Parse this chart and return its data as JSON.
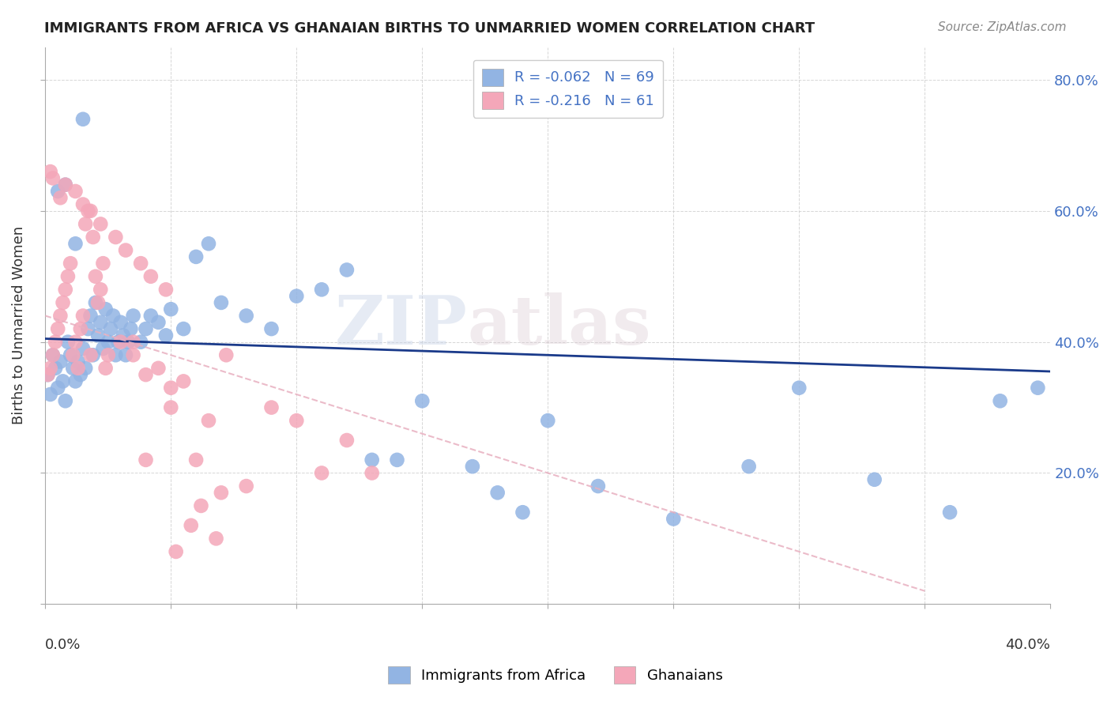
{
  "title": "IMMIGRANTS FROM AFRICA VS GHANAIAN BIRTHS TO UNMARRIED WOMEN CORRELATION CHART",
  "source": "Source: ZipAtlas.com",
  "ylabel": "Births to Unmarried Women",
  "right_yticks": [
    "80.0%",
    "60.0%",
    "40.0%",
    "20.0%"
  ],
  "right_ytick_vals": [
    0.8,
    0.6,
    0.4,
    0.2
  ],
  "legend_label1": "Immigrants from Africa",
  "legend_label2": "Ghanaians",
  "blue_color": "#92b4e3",
  "pink_color": "#f4a7b9",
  "blue_line_color": "#1a3a8a",
  "pink_line_color": "#e8b0c0",
  "watermark_zip": "ZIP",
  "watermark_atlas": "atlas",
  "blue_x": [
    0.001,
    0.002,
    0.003,
    0.004,
    0.005,
    0.006,
    0.007,
    0.008,
    0.009,
    0.01,
    0.011,
    0.012,
    0.013,
    0.014,
    0.015,
    0.016,
    0.017,
    0.018,
    0.019,
    0.02,
    0.021,
    0.022,
    0.023,
    0.024,
    0.025,
    0.026,
    0.027,
    0.028,
    0.029,
    0.03,
    0.031,
    0.032,
    0.033,
    0.034,
    0.035,
    0.038,
    0.04,
    0.042,
    0.045,
    0.048,
    0.05,
    0.055,
    0.06,
    0.065,
    0.07,
    0.08,
    0.09,
    0.1,
    0.11,
    0.12,
    0.13,
    0.14,
    0.15,
    0.17,
    0.18,
    0.19,
    0.2,
    0.22,
    0.25,
    0.28,
    0.3,
    0.33,
    0.36,
    0.38,
    0.395,
    0.005,
    0.008,
    0.012,
    0.015
  ],
  "blue_y": [
    0.35,
    0.32,
    0.38,
    0.36,
    0.33,
    0.37,
    0.34,
    0.31,
    0.4,
    0.38,
    0.36,
    0.34,
    0.37,
    0.35,
    0.39,
    0.36,
    0.42,
    0.44,
    0.38,
    0.46,
    0.41,
    0.43,
    0.39,
    0.45,
    0.4,
    0.42,
    0.44,
    0.38,
    0.4,
    0.43,
    0.41,
    0.38,
    0.4,
    0.42,
    0.44,
    0.4,
    0.42,
    0.44,
    0.43,
    0.41,
    0.45,
    0.42,
    0.53,
    0.55,
    0.46,
    0.44,
    0.42,
    0.47,
    0.48,
    0.51,
    0.22,
    0.22,
    0.31,
    0.21,
    0.17,
    0.14,
    0.28,
    0.18,
    0.13,
    0.21,
    0.33,
    0.19,
    0.14,
    0.31,
    0.33,
    0.63,
    0.64,
    0.55,
    0.74
  ],
  "pink_x": [
    0.001,
    0.002,
    0.003,
    0.004,
    0.005,
    0.006,
    0.007,
    0.008,
    0.009,
    0.01,
    0.011,
    0.012,
    0.013,
    0.014,
    0.015,
    0.016,
    0.017,
    0.018,
    0.019,
    0.02,
    0.021,
    0.022,
    0.023,
    0.024,
    0.025,
    0.03,
    0.035,
    0.04,
    0.05,
    0.06,
    0.07,
    0.08,
    0.09,
    0.1,
    0.11,
    0.12,
    0.13,
    0.04,
    0.05,
    0.035,
    0.045,
    0.055,
    0.065,
    0.002,
    0.003,
    0.006,
    0.008,
    0.012,
    0.015,
    0.018,
    0.022,
    0.028,
    0.032,
    0.038,
    0.042,
    0.048,
    0.052,
    0.058,
    0.062,
    0.068,
    0.072
  ],
  "pink_y": [
    0.35,
    0.36,
    0.38,
    0.4,
    0.42,
    0.44,
    0.46,
    0.48,
    0.5,
    0.52,
    0.38,
    0.4,
    0.36,
    0.42,
    0.44,
    0.58,
    0.6,
    0.38,
    0.56,
    0.5,
    0.46,
    0.48,
    0.52,
    0.36,
    0.38,
    0.4,
    0.38,
    0.22,
    0.3,
    0.22,
    0.17,
    0.18,
    0.3,
    0.28,
    0.2,
    0.25,
    0.2,
    0.35,
    0.33,
    0.4,
    0.36,
    0.34,
    0.28,
    0.66,
    0.65,
    0.62,
    0.64,
    0.63,
    0.61,
    0.6,
    0.58,
    0.56,
    0.54,
    0.52,
    0.5,
    0.48,
    0.08,
    0.12,
    0.15,
    0.1,
    0.38
  ],
  "xlim": [
    0.0,
    0.4
  ],
  "ylim": [
    0.0,
    0.85
  ],
  "figsize": [
    14.06,
    8.92
  ],
  "dpi": 100
}
